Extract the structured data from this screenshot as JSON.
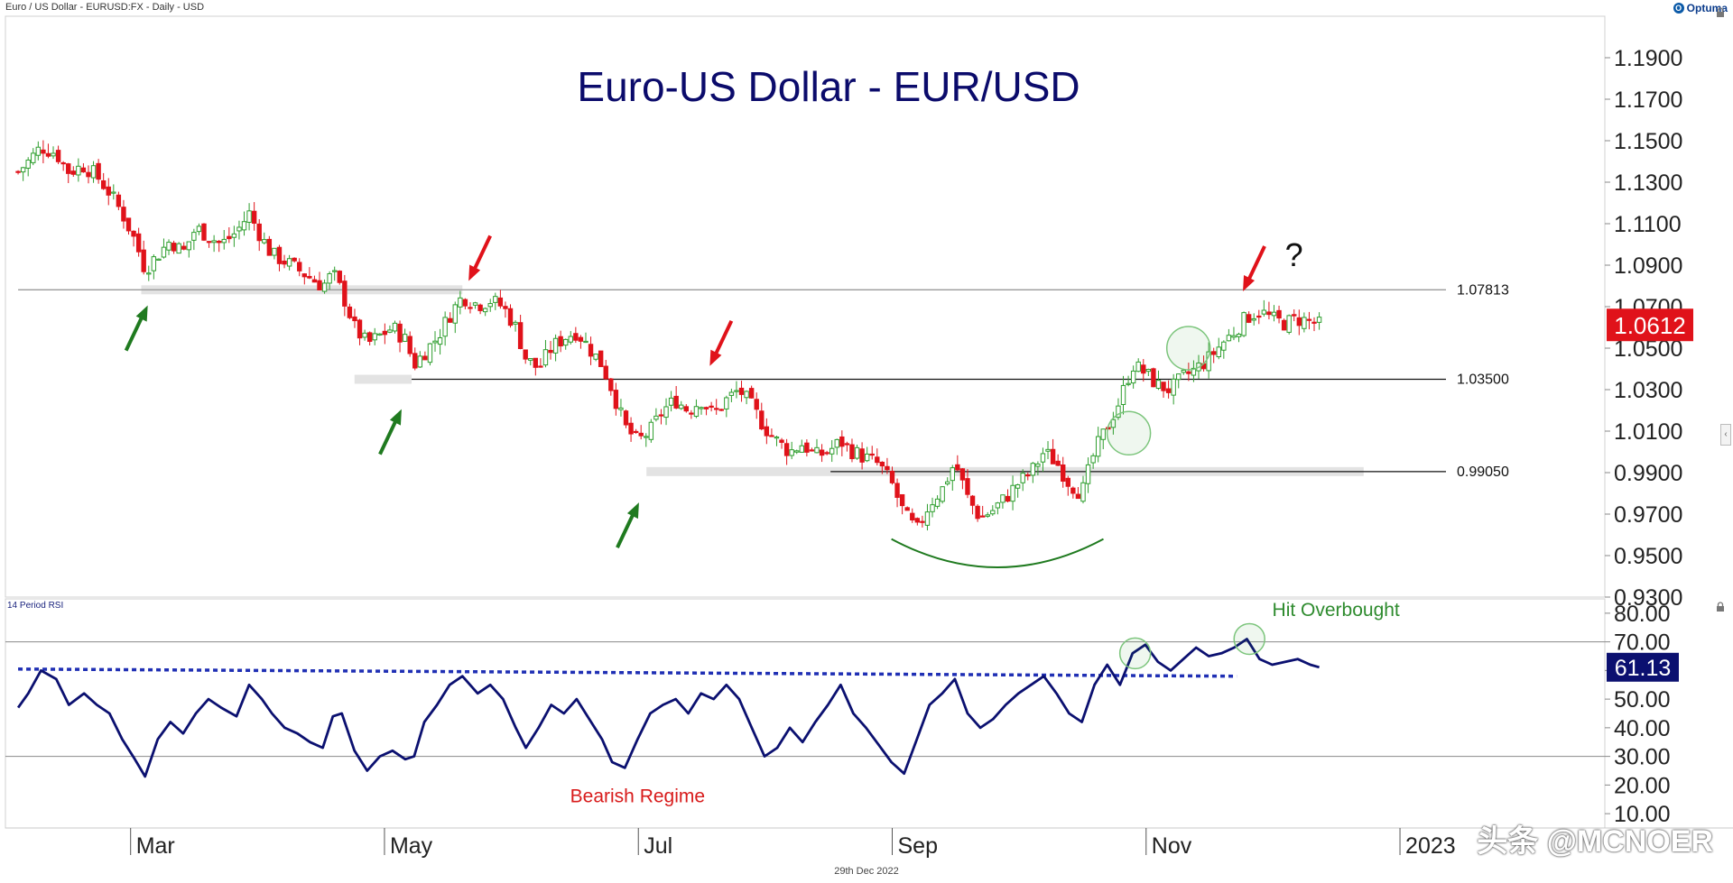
{
  "header": {
    "instrument": "Euro / US Dollar - EURUSD:FX - Daily - USD",
    "brand": "Optuma",
    "brand_icon": "optuma-logo-icon"
  },
  "footer": {
    "date": "29th Dec 2022",
    "watermark": "头条 @MCNOER"
  },
  "colors": {
    "title": "#0b0b6b",
    "up": "#2e9e2e",
    "down": "#e0121a",
    "rsi_line": "#0b1070",
    "price_badge": "#e0121a",
    "rsi_badge": "#0b1070",
    "support_band": "#e3e3e3",
    "arrow_green": "#1f7a1f",
    "arrow_red": "#e0121a",
    "annotation_green": "#2e8b2e",
    "annotation_red": "#d81b1b"
  },
  "chart_data": [
    {
      "type": "candlestick",
      "title": "Euro-US Dollar - EUR/USD",
      "x_ticks": [
        "Mar",
        "May",
        "Jul",
        "Sep",
        "Nov",
        "2023"
      ],
      "x_tick_positions_month_index": [
        1,
        3,
        5,
        7,
        9,
        11
      ],
      "x_range_month_index": [
        -0.1,
        12.5
      ],
      "ylim": [
        0.93,
        1.21
      ],
      "y_ticks": [
        0.93,
        0.95,
        0.97,
        0.99,
        1.01,
        1.03,
        1.05,
        1.07,
        1.09,
        1.11,
        1.13,
        1.15,
        1.17,
        1.19
      ],
      "y_tick_labels": [
        "0.9300",
        "0.9500",
        "0.9700",
        "0.9900",
        "1.0100",
        "1.0300",
        "1.0500",
        "1.0700",
        "1.0900",
        "1.1100",
        "1.1300",
        "1.1500",
        "1.1700",
        "1.1900"
      ],
      "last_price": 1.0612,
      "last_price_label": "1.0612",
      "levels": [
        {
          "value": 1.07813,
          "label": "1.07813",
          "from_month": 0.0,
          "band_from_month": 0.97,
          "band_to_month": 3.5
        },
        {
          "value": 1.035,
          "label": "1.03500",
          "from_month": 3.1,
          "band_from_month": 2.65,
          "band_to_month": 3.1
        },
        {
          "value": 0.9905,
          "label": "0.99050",
          "from_month": 6.4,
          "band_from_month": 4.95,
          "band_to_month": 10.6
        }
      ],
      "close_path": [
        [
          0.0,
          1.135
        ],
        [
          0.08,
          1.14
        ],
        [
          0.18,
          1.147
        ],
        [
          0.3,
          1.144
        ],
        [
          0.4,
          1.135
        ],
        [
          0.52,
          1.138
        ],
        [
          0.62,
          1.133
        ],
        [
          0.72,
          1.125
        ],
        [
          0.82,
          1.115
        ],
        [
          0.92,
          1.102
        ],
        [
          1.0,
          1.088
        ],
        [
          1.1,
          1.095
        ],
        [
          1.2,
          1.102
        ],
        [
          1.3,
          1.096
        ],
        [
          1.4,
          1.108
        ],
        [
          1.5,
          1.104
        ],
        [
          1.6,
          1.1
        ],
        [
          1.72,
          1.106
        ],
        [
          1.82,
          1.115
        ],
        [
          1.92,
          1.103
        ],
        [
          2.0,
          1.095
        ],
        [
          2.1,
          1.092
        ],
        [
          2.2,
          1.088
        ],
        [
          2.3,
          1.084
        ],
        [
          2.4,
          1.08
        ],
        [
          2.48,
          1.086
        ],
        [
          2.55,
          1.077
        ],
        [
          2.65,
          1.06
        ],
        [
          2.75,
          1.052
        ],
        [
          2.85,
          1.056
        ],
        [
          2.95,
          1.06
        ],
        [
          3.05,
          1.054
        ],
        [
          3.12,
          1.042
        ],
        [
          3.2,
          1.048
        ],
        [
          3.3,
          1.055
        ],
        [
          3.4,
          1.066
        ],
        [
          3.5,
          1.075
        ],
        [
          3.62,
          1.071
        ],
        [
          3.72,
          1.073
        ],
        [
          3.82,
          1.07
        ],
        [
          3.92,
          1.06
        ],
        [
          4.0,
          1.045
        ],
        [
          4.1,
          1.04
        ],
        [
          4.2,
          1.05
        ],
        [
          4.3,
          1.055
        ],
        [
          4.4,
          1.058
        ],
        [
          4.5,
          1.05
        ],
        [
          4.6,
          1.042
        ],
        [
          4.68,
          1.03
        ],
        [
          4.78,
          1.012
        ],
        [
          4.88,
          1.005
        ],
        [
          4.98,
          1.01
        ],
        [
          5.08,
          1.02
        ],
        [
          5.18,
          1.025
        ],
        [
          5.28,
          1.02
        ],
        [
          5.38,
          1.025
        ],
        [
          5.48,
          1.018
        ],
        [
          5.58,
          1.025
        ],
        [
          5.68,
          1.03
        ],
        [
          5.78,
          1.022
        ],
        [
          5.88,
          1.012
        ],
        [
          5.98,
          1.005
        ],
        [
          6.08,
          1.0
        ],
        [
          6.18,
          1.004
        ],
        [
          6.28,
          0.998
        ],
        [
          6.38,
          1.0
        ],
        [
          6.48,
          1.005
        ],
        [
          6.58,
          1.0
        ],
        [
          6.68,
          0.997
        ],
        [
          6.78,
          0.994
        ],
        [
          6.88,
          0.985
        ],
        [
          6.98,
          0.97
        ],
        [
          7.08,
          0.962
        ],
        [
          7.18,
          0.975
        ],
        [
          7.28,
          0.982
        ],
        [
          7.38,
          0.995
        ],
        [
          7.48,
          0.978
        ],
        [
          7.58,
          0.968
        ],
        [
          7.68,
          0.972
        ],
        [
          7.78,
          0.978
        ],
        [
          7.88,
          0.985
        ],
        [
          7.98,
          0.99
        ],
        [
          8.08,
          1.0
        ],
        [
          8.18,
          0.995
        ],
        [
          8.28,
          0.985
        ],
        [
          8.38,
          0.98
        ],
        [
          8.48,
          1.0
        ],
        [
          8.58,
          1.012
        ],
        [
          8.68,
          1.025
        ],
        [
          8.78,
          1.042
        ],
        [
          8.88,
          1.038
        ],
        [
          8.98,
          1.032
        ],
        [
          9.08,
          1.03
        ],
        [
          9.18,
          1.036
        ],
        [
          9.28,
          1.04
        ],
        [
          9.38,
          1.045
        ],
        [
          9.48,
          1.052
        ],
        [
          9.58,
          1.058
        ],
        [
          9.68,
          1.065
        ],
        [
          9.78,
          1.068
        ],
        [
          9.88,
          1.064
        ],
        [
          9.98,
          1.062
        ],
        [
          10.08,
          1.064
        ],
        [
          10.18,
          1.063
        ],
        [
          10.25,
          1.0612
        ]
      ],
      "annotations": {
        "question_mark": "?",
        "rounded_bottom_arc": {
          "from_month": 6.88,
          "to_month": 8.55,
          "price": 0.958,
          "depth": 0.008
        },
        "green_arrows": [
          {
            "month": 0.95,
            "price": 1.068
          },
          {
            "month": 2.95,
            "price": 1.018
          },
          {
            "month": 4.82,
            "price": 0.973
          }
        ],
        "red_arrows": [
          {
            "month": 3.62,
            "price": 1.085
          },
          {
            "month": 5.52,
            "price": 1.044
          },
          {
            "month": 9.72,
            "price": 1.08
          }
        ],
        "circles": [
          {
            "month": 8.75,
            "price": 1.009
          },
          {
            "month": 9.22,
            "price": 1.05
          }
        ]
      }
    },
    {
      "type": "line",
      "title": "14 Period RSI",
      "ylim": [
        5,
        85
      ],
      "y_ticks": [
        10,
        20,
        30,
        40,
        50,
        60,
        70,
        80
      ],
      "y_tick_labels": [
        "10.00",
        "20.00",
        "30.00",
        "40.00",
        "50.00",
        "60.00",
        "70.00",
        "80.00"
      ],
      "overbought": 70,
      "oversold": 30,
      "last_value": 61.13,
      "last_value_label": "61.13",
      "regime_line": {
        "from_month": 0.0,
        "to_month": 9.6,
        "from_value": 60.5,
        "to_value": 58.0
      },
      "labels": {
        "overbought": "Hit Overbought",
        "regime": "Bearish Regime"
      },
      "overbought_circles": [
        {
          "month": 8.8,
          "value": 66
        },
        {
          "month": 9.7,
          "value": 71
        }
      ],
      "values": [
        [
          0.0,
          47
        ],
        [
          0.08,
          52
        ],
        [
          0.18,
          60
        ],
        [
          0.3,
          57
        ],
        [
          0.4,
          48
        ],
        [
          0.52,
          52
        ],
        [
          0.62,
          48
        ],
        [
          0.72,
          45
        ],
        [
          0.82,
          36
        ],
        [
          0.92,
          29
        ],
        [
          1.0,
          23
        ],
        [
          1.1,
          36
        ],
        [
          1.2,
          42
        ],
        [
          1.3,
          38
        ],
        [
          1.4,
          45
        ],
        [
          1.5,
          50
        ],
        [
          1.6,
          47
        ],
        [
          1.72,
          44
        ],
        [
          1.82,
          55
        ],
        [
          1.92,
          50
        ],
        [
          2.0,
          45
        ],
        [
          2.1,
          40
        ],
        [
          2.2,
          38
        ],
        [
          2.3,
          35
        ],
        [
          2.4,
          33
        ],
        [
          2.48,
          44
        ],
        [
          2.55,
          45
        ],
        [
          2.65,
          32
        ],
        [
          2.75,
          25
        ],
        [
          2.85,
          30
        ],
        [
          2.95,
          32
        ],
        [
          3.05,
          29
        ],
        [
          3.12,
          30
        ],
        [
          3.2,
          42
        ],
        [
          3.3,
          48
        ],
        [
          3.4,
          55
        ],
        [
          3.5,
          58
        ],
        [
          3.62,
          52
        ],
        [
          3.72,
          55
        ],
        [
          3.82,
          50
        ],
        [
          3.92,
          40
        ],
        [
          4.0,
          33
        ],
        [
          4.1,
          40
        ],
        [
          4.2,
          48
        ],
        [
          4.3,
          45
        ],
        [
          4.4,
          50
        ],
        [
          4.5,
          43
        ],
        [
          4.6,
          36
        ],
        [
          4.68,
          28
        ],
        [
          4.78,
          26
        ],
        [
          4.88,
          36
        ],
        [
          4.98,
          45
        ],
        [
          5.08,
          48
        ],
        [
          5.18,
          50
        ],
        [
          5.28,
          45
        ],
        [
          5.38,
          52
        ],
        [
          5.48,
          50
        ],
        [
          5.58,
          55
        ],
        [
          5.68,
          50
        ],
        [
          5.78,
          40
        ],
        [
          5.88,
          30
        ],
        [
          5.98,
          33
        ],
        [
          6.08,
          40
        ],
        [
          6.18,
          35
        ],
        [
          6.28,
          42
        ],
        [
          6.38,
          48
        ],
        [
          6.48,
          55
        ],
        [
          6.58,
          45
        ],
        [
          6.68,
          40
        ],
        [
          6.78,
          34
        ],
        [
          6.88,
          28
        ],
        [
          6.98,
          24
        ],
        [
          7.08,
          36
        ],
        [
          7.18,
          48
        ],
        [
          7.28,
          52
        ],
        [
          7.38,
          57
        ],
        [
          7.48,
          45
        ],
        [
          7.58,
          40
        ],
        [
          7.68,
          43
        ],
        [
          7.78,
          48
        ],
        [
          7.88,
          52
        ],
        [
          7.98,
          55
        ],
        [
          8.08,
          58
        ],
        [
          8.18,
          52
        ],
        [
          8.28,
          45
        ],
        [
          8.38,
          42
        ],
        [
          8.48,
          55
        ],
        [
          8.58,
          62
        ],
        [
          8.68,
          55
        ],
        [
          8.78,
          66
        ],
        [
          8.88,
          69
        ],
        [
          8.98,
          63
        ],
        [
          9.08,
          60
        ],
        [
          9.18,
          64
        ],
        [
          9.28,
          68
        ],
        [
          9.38,
          65
        ],
        [
          9.48,
          66
        ],
        [
          9.58,
          68
        ],
        [
          9.68,
          71
        ],
        [
          9.78,
          64
        ],
        [
          9.88,
          62
        ],
        [
          9.98,
          63
        ],
        [
          10.08,
          64
        ],
        [
          10.18,
          62
        ],
        [
          10.25,
          61.13
        ]
      ]
    }
  ]
}
